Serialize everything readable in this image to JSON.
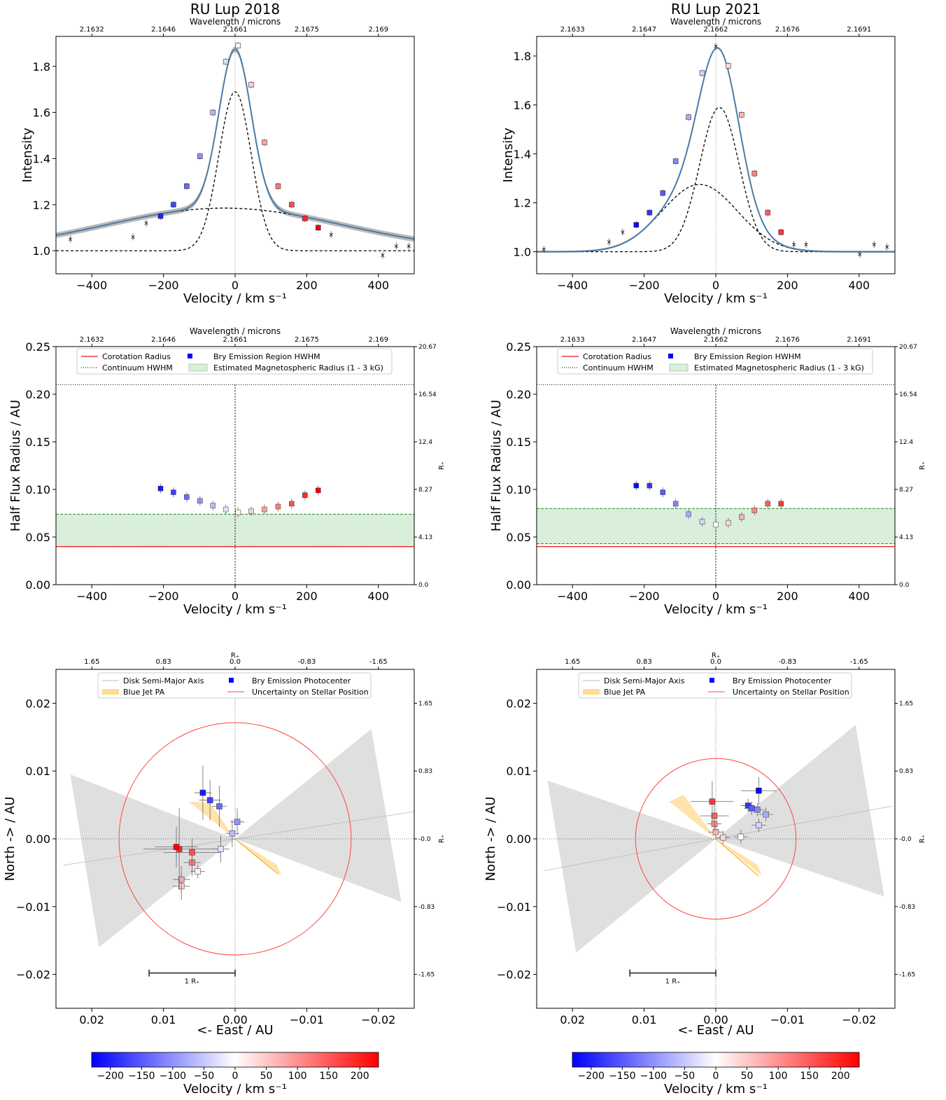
{
  "figure": {
    "title": "",
    "colorbar_label": "Velocity / km s$^{-1}$"
  },
  "chart_data": [
    {
      "id": "p2018_spec",
      "type": "line",
      "title": "RU Lup 2018",
      "xlabel": "Velocity / km s⁻¹",
      "ylabel": "Intensity",
      "top_axis_label": "Wavelength / microns",
      "xlim": [
        -500,
        500
      ],
      "ylim": [
        0.9,
        1.93
      ],
      "xticks": [
        -400,
        -200,
        0,
        200,
        400
      ],
      "yticks": [
        1.0,
        1.2,
        1.4,
        1.6,
        1.8
      ],
      "top_ticks": [
        {
          "v": -400,
          "label": "2.1632"
        },
        {
          "v": -200,
          "label": "2.1646"
        },
        {
          "v": 0,
          "label": "2.1661"
        },
        {
          "v": 200,
          "label": "2.1675"
        },
        {
          "v": 400,
          "label": "2.169"
        }
      ],
      "model": {
        "continuum": 1.0,
        "gauss_amp": 0.69,
        "gauss_center": 0,
        "gauss_sigma": 45,
        "broad_amp": 0.185,
        "broad_center": -30,
        "broad_sigma": 330
      },
      "points": [
        [
          -460,
          1.05,
          0
        ],
        [
          -285,
          1.06,
          0
        ],
        [
          -248,
          1.12,
          0
        ],
        [
          -208,
          1.15,
          -200
        ],
        [
          -172,
          1.2,
          -170
        ],
        [
          -135,
          1.28,
          -135
        ],
        [
          -98,
          1.41,
          -100
        ],
        [
          -62,
          1.6,
          -65
        ],
        [
          -26,
          1.82,
          -30
        ],
        [
          8,
          1.89,
          8
        ],
        [
          45,
          1.72,
          45
        ],
        [
          82,
          1.47,
          80
        ],
        [
          120,
          1.28,
          120
        ],
        [
          158,
          1.2,
          155
        ],
        [
          195,
          1.14,
          195
        ],
        [
          232,
          1.1,
          230
        ],
        [
          268,
          1.07,
          0
        ],
        [
          412,
          0.98,
          0
        ],
        [
          450,
          1.02,
          0
        ],
        [
          485,
          1.02,
          0
        ]
      ]
    },
    {
      "id": "p2021_spec",
      "type": "line",
      "title": "RU Lup 2021",
      "xlabel": "Velocity / km s⁻¹",
      "ylabel": "Intensity",
      "top_axis_label": "Wavelength / microns",
      "xlim": [
        -500,
        500
      ],
      "ylim": [
        0.91,
        1.88
      ],
      "xticks": [
        -400,
        -200,
        0,
        200,
        400
      ],
      "yticks": [
        1.0,
        1.2,
        1.4,
        1.6,
        1.8
      ],
      "top_ticks": [
        {
          "v": -400,
          "label": "2.1633"
        },
        {
          "v": -200,
          "label": "2.1647"
        },
        {
          "v": 0,
          "label": "2.1662"
        },
        {
          "v": 200,
          "label": "2.1676"
        },
        {
          "v": 400,
          "label": "2.1691"
        }
      ],
      "model": {
        "continuum": 1.0,
        "gauss_amp": 0.59,
        "gauss_center": 10,
        "gauss_sigma": 55,
        "broad_amp": 0.275,
        "broad_center": -45,
        "broad_sigma": 105
      },
      "points": [
        [
          -480,
          1.01,
          0
        ],
        [
          -298,
          1.04,
          0
        ],
        [
          -260,
          1.08,
          0
        ],
        [
          -222,
          1.11,
          -220
        ],
        [
          -185,
          1.16,
          -185
        ],
        [
          -148,
          1.24,
          -150
        ],
        [
          -112,
          1.37,
          -110
        ],
        [
          -76,
          1.55,
          -75
        ],
        [
          -38,
          1.73,
          -40
        ],
        [
          0,
          1.84,
          0
        ],
        [
          35,
          1.76,
          35
        ],
        [
          72,
          1.56,
          70
        ],
        [
          108,
          1.32,
          110
        ],
        [
          145,
          1.16,
          145
        ],
        [
          182,
          1.08,
          180
        ],
        [
          218,
          1.03,
          0
        ],
        [
          252,
          1.03,
          0
        ],
        [
          402,
          0.99,
          0
        ],
        [
          442,
          1.03,
          0
        ],
        [
          478,
          1.02,
          0
        ]
      ]
    },
    {
      "id": "p2018_hfr",
      "type": "scatter",
      "xlabel": "Velocity / km s⁻¹",
      "ylabel": "Half Flux Radius / AU",
      "right_label": "R₊",
      "top_axis_label": "Wavelength / microns",
      "xlim": [
        -500,
        500
      ],
      "ylim": [
        0.0,
        0.25
      ],
      "xticks": [
        -400,
        -200,
        0,
        200,
        400
      ],
      "yticks": [
        0.0,
        0.05,
        0.1,
        0.15,
        0.2,
        0.25
      ],
      "right_ticks": [
        {
          "v": 0.0,
          "label": "0.0"
        },
        {
          "v": 0.05,
          "label": "4.13"
        },
        {
          "v": 0.1,
          "label": "8.27"
        },
        {
          "v": 0.15,
          "label": "12.4"
        },
        {
          "v": 0.2,
          "label": "16.54"
        },
        {
          "v": 0.25,
          "label": "20.67"
        }
      ],
      "top_ticks": [
        {
          "v": -400,
          "label": "2.1632"
        },
        {
          "v": -200,
          "label": "2.1646"
        },
        {
          "v": 0,
          "label": "2.1661"
        },
        {
          "v": 200,
          "label": "2.1675"
        },
        {
          "v": 400,
          "label": "2.169"
        }
      ],
      "legend": [
        "Corotation Radius",
        "Bry Emission Region HWHM",
        "Continuum HWHM",
        "Estimated Magnetospheric Radius (1 - 3 kG)"
      ],
      "corotation": 0.04,
      "continuum_hwhm": 0.21,
      "mag_band": [
        0.04,
        0.074
      ],
      "points": [
        [
          -208,
          0.101
        ],
        [
          -172,
          0.097
        ],
        [
          -135,
          0.092
        ],
        [
          -98,
          0.088
        ],
        [
          -62,
          0.083
        ],
        [
          -26,
          0.079
        ],
        [
          8,
          0.076
        ],
        [
          45,
          0.077
        ],
        [
          82,
          0.079
        ],
        [
          120,
          0.082
        ],
        [
          158,
          0.085
        ],
        [
          195,
          0.094
        ],
        [
          232,
          0.099
        ]
      ]
    },
    {
      "id": "p2021_hfr",
      "type": "scatter",
      "xlabel": "Velocity / km s⁻¹",
      "ylabel": "Half Flux Radius / AU",
      "right_label": "R₊",
      "top_axis_label": "Wavelength / microns",
      "xlim": [
        -500,
        500
      ],
      "ylim": [
        0.0,
        0.25
      ],
      "xticks": [
        -400,
        -200,
        0,
        200,
        400
      ],
      "yticks": [
        0.0,
        0.05,
        0.1,
        0.15,
        0.2,
        0.25
      ],
      "right_ticks": [
        {
          "v": 0.0,
          "label": "0.0"
        },
        {
          "v": 0.05,
          "label": "4.13"
        },
        {
          "v": 0.1,
          "label": "8.27"
        },
        {
          "v": 0.15,
          "label": "12.4"
        },
        {
          "v": 0.2,
          "label": "16.54"
        },
        {
          "v": 0.25,
          "label": "20.67"
        }
      ],
      "top_ticks": [
        {
          "v": -400,
          "label": "2.1633"
        },
        {
          "v": -200,
          "label": "2.1647"
        },
        {
          "v": 0,
          "label": "2.1662"
        },
        {
          "v": 200,
          "label": "2.1676"
        },
        {
          "v": 400,
          "label": "2.1691"
        }
      ],
      "legend": [
        "Corotation Radius",
        "Bry Emission Region HWHM",
        "Continuum HWHM",
        "Estimated Magnetospheric Radius (1 - 3 kG)"
      ],
      "corotation": 0.04,
      "continuum_hwhm": 0.21,
      "mag_band": [
        0.043,
        0.08
      ],
      "points": [
        [
          -222,
          0.104
        ],
        [
          -185,
          0.104
        ],
        [
          -148,
          0.097
        ],
        [
          -112,
          0.085
        ],
        [
          -76,
          0.074
        ],
        [
          -38,
          0.066
        ],
        [
          0,
          0.063
        ],
        [
          35,
          0.065
        ],
        [
          72,
          0.071
        ],
        [
          108,
          0.078
        ],
        [
          145,
          0.085
        ],
        [
          182,
          0.085
        ]
      ]
    },
    {
      "id": "p2018_pc",
      "type": "scatter",
      "xlabel": "<- East  / AU",
      "ylabel": "North -> / AU",
      "top_label": "R₊",
      "right_label": "R₊",
      "xlim": [
        0.025,
        -0.025
      ],
      "ylim": [
        -0.025,
        0.025
      ],
      "xticks": [
        0.02,
        0.01,
        0.0,
        -0.01,
        -0.02
      ],
      "xtick_labels": [
        "0.02",
        "0.01",
        "0.00",
        "−0.01",
        "−0.02"
      ],
      "yticks": [
        -0.02,
        -0.01,
        0.0,
        0.01,
        0.02
      ],
      "ytick_labels": [
        "−0.02",
        "−0.01",
        "0.00",
        "0.01",
        "0.02"
      ],
      "top_ticks": [
        {
          "v": 0.02,
          "label": "1.65"
        },
        {
          "v": 0.01,
          "label": "0.83"
        },
        {
          "v": 0.0,
          "label": "0.0"
        },
        {
          "v": -0.01,
          "label": "-0.83"
        },
        {
          "v": -0.02,
          "label": "-1.65"
        }
      ],
      "right_ticks": [
        {
          "v": 0.02,
          "label": "1.65"
        },
        {
          "v": 0.01,
          "label": "0.83"
        },
        {
          "v": 0.0,
          "label": "-0.0"
        },
        {
          "v": -0.01,
          "label": "-0.83"
        },
        {
          "v": -0.02,
          "label": "-1.65"
        }
      ],
      "legend": [
        "Disk Semi-Major Axis",
        "Bry Emission Photocenter",
        "Blue Jet PA",
        "Uncertainty on Stellar Position"
      ],
      "scale_bar_label": "1 R₊",
      "scale_bar": [
        0.012,
        0.0
      ],
      "uncertainty_radius": 0.0162,
      "disk_line": [
        [
          0.024,
          -0.0039
        ],
        [
          -0.025,
          0.004
        ]
      ],
      "disk_wedges": [
        [
          [
            0.023,
            0.0095
          ],
          [
            0.019,
            -0.016
          ]
        ],
        [
          [
            -0.019,
            0.0162
          ],
          [
            -0.0232,
            -0.0093
          ]
        ]
      ],
      "jet_wedge": [
        [
          0.0065,
          0.0055
        ],
        [
          0.0035,
          0.0053
        ],
        [
          0.0,
          0.0
        ],
        [
          -0.0065,
          -0.0055
        ],
        [
          -0.0058,
          -0.0038
        ]
      ],
      "jet_line": [
        [
          0.0,
          0.0
        ],
        [
          -0.006,
          -0.0052
        ]
      ],
      "points": [
        [
          0.0045,
          0.0068,
          -208,
          0.0012,
          0.004
        ],
        [
          0.0035,
          0.0057,
          -172,
          0.0015,
          0.003
        ],
        [
          0.0022,
          0.0048,
          -135,
          0.001,
          0.003
        ],
        [
          -0.0003,
          0.0025,
          -98,
          0.001,
          0.002
        ],
        [
          0.0004,
          0.0008,
          -62,
          0.001,
          0.002
        ],
        [
          0.002,
          -0.0015,
          -26,
          0.0012,
          0.002
        ],
        [
          0.0052,
          -0.0048,
          8,
          0.001,
          0.001
        ],
        [
          0.0075,
          -0.007,
          45,
          0.0012,
          0.002
        ],
        [
          0.0075,
          -0.006,
          82,
          0.0012,
          0.002
        ],
        [
          0.006,
          -0.0035,
          120,
          0.0012,
          0.002
        ],
        [
          0.006,
          -0.002,
          158,
          0.004,
          0.002
        ],
        [
          0.0078,
          -0.0015,
          195,
          0.005,
          0.006
        ],
        [
          0.0082,
          -0.0012,
          232,
          0.003,
          0.003
        ]
      ]
    },
    {
      "id": "p2021_pc",
      "type": "scatter",
      "xlabel": "<- East  / AU",
      "ylabel": "North -> / AU",
      "top_label": "R₊",
      "right_label": "R₊",
      "xlim": [
        0.025,
        -0.025
      ],
      "ylim": [
        -0.025,
        0.025
      ],
      "xticks": [
        0.02,
        0.01,
        0.0,
        -0.01,
        -0.02
      ],
      "xtick_labels": [
        "0.02",
        "0.01",
        "0.00",
        "−0.01",
        "−0.02"
      ],
      "yticks": [
        -0.02,
        -0.01,
        0.0,
        0.01,
        0.02
      ],
      "ytick_labels": [
        "−0.02",
        "−0.01",
        "0.00",
        "0.01",
        "0.02"
      ],
      "top_ticks": [
        {
          "v": 0.02,
          "label": "1.65"
        },
        {
          "v": 0.01,
          "label": "0.83"
        },
        {
          "v": 0.0,
          "label": "0.0"
        },
        {
          "v": -0.01,
          "label": "-0.83"
        },
        {
          "v": -0.02,
          "label": "-1.65"
        }
      ],
      "right_ticks": [
        {
          "v": 0.02,
          "label": "1.65"
        },
        {
          "v": 0.01,
          "label": "0.83"
        },
        {
          "v": 0.0,
          "label": "-0.0"
        },
        {
          "v": -0.01,
          "label": "-0.83"
        },
        {
          "v": -0.02,
          "label": "-1.65"
        }
      ],
      "legend": [
        "Disk Semi-Major Axis",
        "Bry Emission Photocenter",
        "Blue Jet PA",
        "Uncertainty on Stellar Position"
      ],
      "scale_bar_label": "1 R₊",
      "scale_bar": [
        0.012,
        0.0
      ],
      "uncertainty_radius": 0.0112,
      "disk_line": [
        [
          0.024,
          -0.0047
        ],
        [
          -0.0245,
          0.0048
        ]
      ],
      "disk_wedges": [
        [
          [
            0.0235,
            0.0086
          ],
          [
            0.0195,
            -0.0168
          ]
        ],
        [
          [
            -0.0195,
            0.0168
          ],
          [
            -0.0235,
            -0.0085
          ]
        ]
      ],
      "jet_wedge": [
        [
          0.0065,
          0.0055
        ],
        [
          0.0045,
          0.0065
        ],
        [
          0.0,
          0.0
        ],
        [
          -0.0065,
          -0.0055
        ],
        [
          -0.0058,
          -0.0038
        ]
      ],
      "jet_line": [
        [
          0.0,
          0.0
        ],
        [
          -0.006,
          -0.0055
        ]
      ],
      "points": [
        [
          -0.006,
          0.0071,
          -222,
          0.0025,
          0.002
        ],
        [
          -0.0045,
          0.0049,
          -185,
          0.001,
          0.001
        ],
        [
          -0.005,
          0.0045,
          -148,
          0.001,
          0.001
        ],
        [
          -0.0058,
          0.0043,
          -112,
          0.001,
          0.001
        ],
        [
          -0.007,
          0.0036,
          -76,
          0.001,
          0.001
        ],
        [
          -0.006,
          0.002,
          -38,
          0.001,
          0.001
        ],
        [
          -0.0035,
          0.0003,
          0,
          0.001,
          0.001
        ],
        [
          -0.001,
          0.0002,
          35,
          0.001,
          0.001
        ],
        [
          0.0,
          0.001,
          72,
          0.001,
          0.001
        ],
        [
          0.0002,
          0.0022,
          108,
          0.001,
          0.001
        ],
        [
          0.0002,
          0.0034,
          145,
          0.002,
          0.002
        ],
        [
          0.0005,
          0.0055,
          182,
          0.003,
          0.003
        ]
      ]
    },
    {
      "id": "cbar_l",
      "type": "heatmap",
      "title": "",
      "xlabel": "Velocity / km s⁻¹",
      "range": [
        -230,
        230
      ],
      "ticks": [
        -200,
        -150,
        -100,
        -50,
        0,
        50,
        100,
        150,
        200
      ],
      "tick_labels": [
        "−200",
        "−150",
        "−100",
        "−50",
        "0",
        "50",
        "100",
        "150",
        "200"
      ],
      "colormap": "bwr"
    },
    {
      "id": "cbar_r",
      "type": "heatmap",
      "title": "",
      "xlabel": "Velocity / km s⁻¹",
      "range": [
        -230,
        230
      ],
      "ticks": [
        -200,
        -150,
        -100,
        -50,
        0,
        50,
        100,
        150,
        200
      ],
      "tick_labels": [
        "−200",
        "−150",
        "−100",
        "−50",
        "0",
        "50",
        "100",
        "150",
        "200"
      ],
      "colormap": "bwr"
    }
  ],
  "colors": {
    "fit_line": "#4a7ba7",
    "fit_band": "#aaaaaa",
    "corotation": "#e41a1c",
    "mag_band": "#d9efdb",
    "mag_edge": "#228B22",
    "jet": "#ffcc66",
    "jet_line": "#ff9900",
    "disk": "#d9d9d9",
    "uncertainty": "#ff4444",
    "blue": "#0000ff",
    "red": "#ff0000"
  }
}
